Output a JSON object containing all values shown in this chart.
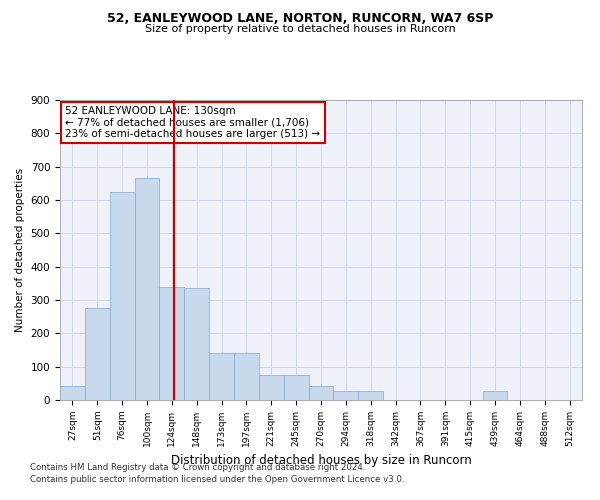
{
  "title1": "52, EANLEYWOOD LANE, NORTON, RUNCORN, WA7 6SP",
  "title2": "Size of property relative to detached houses in Runcorn",
  "xlabel": "Distribution of detached houses by size in Runcorn",
  "ylabel": "Number of detached properties",
  "footnote1": "Contains HM Land Registry data © Crown copyright and database right 2024.",
  "footnote2": "Contains public sector information licensed under the Open Government Licence v3.0.",
  "bar_color": "#c9d9ed",
  "bar_edge_color": "#7fa8cc",
  "grid_color": "#d0d8e8",
  "background_color": "#eef2f8",
  "annotation_box_color": "#ffffff",
  "annotation_border_color": "#cc0000",
  "vline_color": "#cc0000",
  "bin_labels": [
    "27sqm",
    "51sqm",
    "76sqm",
    "100sqm",
    "124sqm",
    "148sqm",
    "173sqm",
    "197sqm",
    "221sqm",
    "245sqm",
    "270sqm",
    "294sqm",
    "318sqm",
    "342sqm",
    "367sqm",
    "391sqm",
    "415sqm",
    "439sqm",
    "464sqm",
    "488sqm",
    "512sqm"
  ],
  "bar_heights": [
    42,
    275,
    625,
    665,
    340,
    335,
    140,
    140,
    75,
    75,
    42,
    28,
    28,
    0,
    0,
    0,
    0,
    28,
    0,
    0,
    0
  ],
  "property_label": "52 EANLEYWOOD LANE: 130sqm",
  "pct_smaller": "77% of detached houses are smaller (1,706)",
  "pct_larger": "23% of semi-detached houses are larger (513)",
  "vline_position": 4.08,
  "ylim": [
    0,
    900
  ],
  "yticks": [
    0,
    100,
    200,
    300,
    400,
    500,
    600,
    700,
    800,
    900
  ]
}
